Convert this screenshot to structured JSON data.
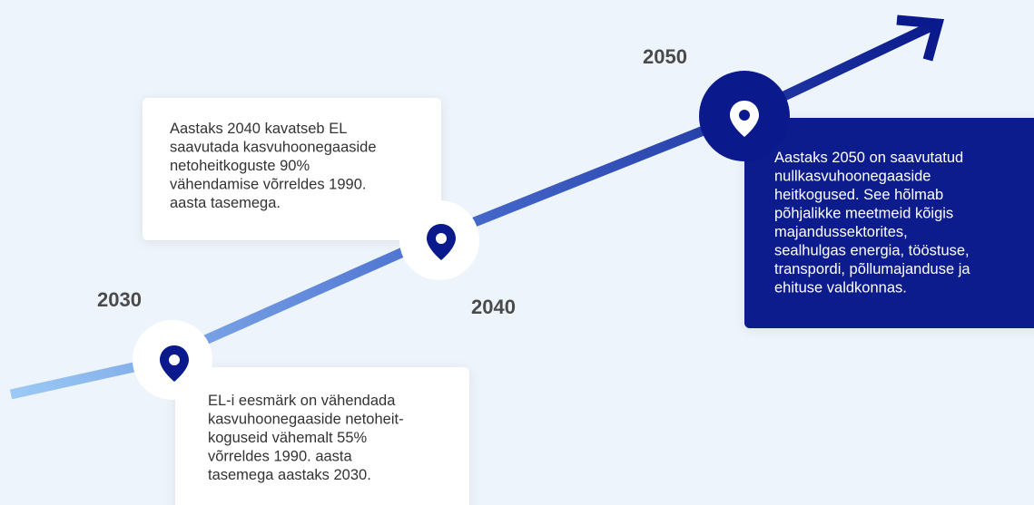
{
  "milestones": [
    {
      "year": "2030",
      "text": [
        "EL-i eesmärk on vähendada",
        "kasvuhoonegaaside netoheit-",
        "koguseid vähemalt 55%",
        "võrreldes 1990. aasta",
        "tasemega aastaks 2030."
      ]
    },
    {
      "year": "2040",
      "text": [
        "Aastaks 2040 kavatseb EL",
        "saavutada kasvuhoonegaaside",
        "netoheitkoguste 90%",
        "vähendamise võrreldes 1990.",
        "aasta tasemega."
      ]
    },
    {
      "year": "2050",
      "text": [
        "Aastaks 2050 on saavutatud",
        "nullkasvuhoonegaaside",
        "heitkogused. See hõlmab",
        "põhjalikke meetmeid kõigis",
        "majandussektorites,",
        "sealhulgas energia, tööstuse,",
        "transpordi, põllumajanduse ja",
        "ehituse valdkonnas."
      ]
    }
  ]
}
